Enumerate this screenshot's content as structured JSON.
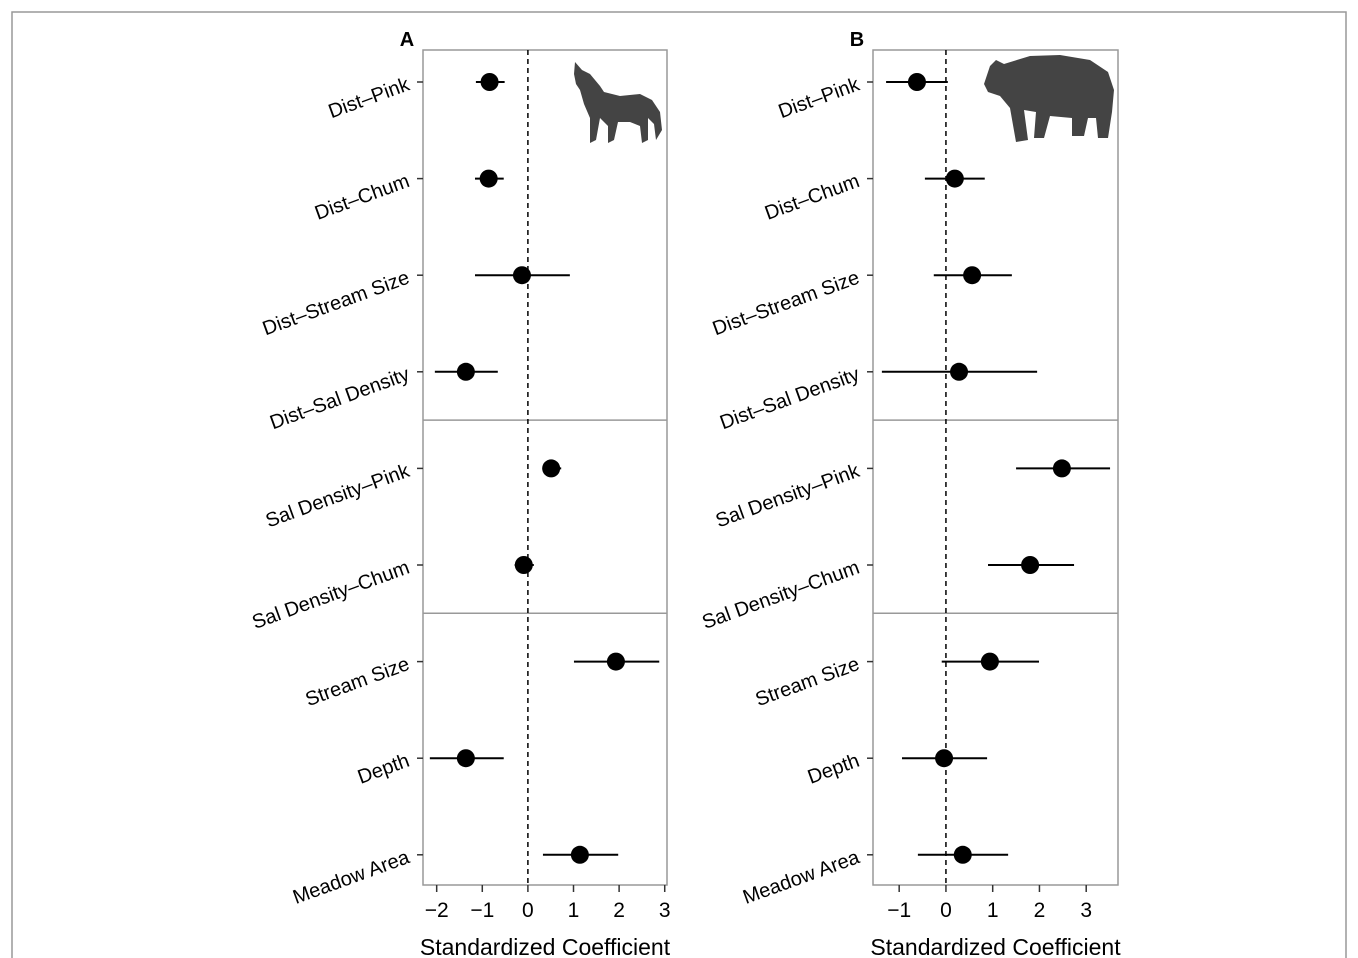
{
  "chart_data": [
    {
      "type": "forest",
      "panel_label": "A",
      "categories": [
        "Dist–Pink",
        "Dist–Chum",
        "Dist–Stream Size",
        "Dist–Sal Density",
        "Sal Density–Pink",
        "Sal Density–Chum",
        "Stream Size",
        "Depth",
        "Meadow Area"
      ],
      "values": [
        -0.84,
        -0.86,
        -0.13,
        -1.36,
        0.51,
        -0.09,
        1.93,
        -1.36,
        1.14
      ],
      "lower": [
        -1.14,
        -1.16,
        -1.16,
        -2.04,
        0.33,
        -0.29,
        1.01,
        -2.15,
        0.33
      ],
      "upper": [
        -0.51,
        -0.53,
        0.92,
        -0.66,
        0.73,
        0.13,
        2.88,
        -0.53,
        1.98
      ],
      "groups": [
        4,
        2,
        3
      ],
      "reference_line": 0,
      "color": "#000000",
      "xlim": [
        -2.3,
        3.05
      ],
      "xticks": [
        {
          "value": -2,
          "label": "−2"
        },
        {
          "value": -1,
          "label": "−1"
        },
        0,
        1,
        2,
        3
      ],
      "xlabel": "Standardized Coefficient"
    },
    {
      "type": "forest",
      "panel_label": "B",
      "categories": [
        "Dist–Pink",
        "Dist–Chum",
        "Dist–Stream Size",
        "Dist–Sal Density",
        "Sal Density–Pink",
        "Sal Density–Chum",
        "Stream Size",
        "Depth",
        "Meadow Area"
      ],
      "values": [
        -0.62,
        0.19,
        0.56,
        0.28,
        2.48,
        1.8,
        0.94,
        -0.04,
        0.36
      ],
      "lower": [
        -1.28,
        -0.45,
        -0.26,
        -1.37,
        1.5,
        0.9,
        -0.09,
        -0.94,
        -0.6
      ],
      "upper": [
        0.04,
        0.83,
        1.41,
        1.95,
        3.51,
        2.74,
        1.99,
        0.88,
        1.33
      ],
      "groups": [
        4,
        2,
        3
      ],
      "reference_line": 0,
      "color": "#000000",
      "xlim": [
        -1.56,
        3.68
      ],
      "xticks": [
        {
          "value": -1,
          "label": "−1"
        },
        0,
        1,
        2,
        3
      ],
      "xlabel": "Standardized Coefficient"
    }
  ]
}
